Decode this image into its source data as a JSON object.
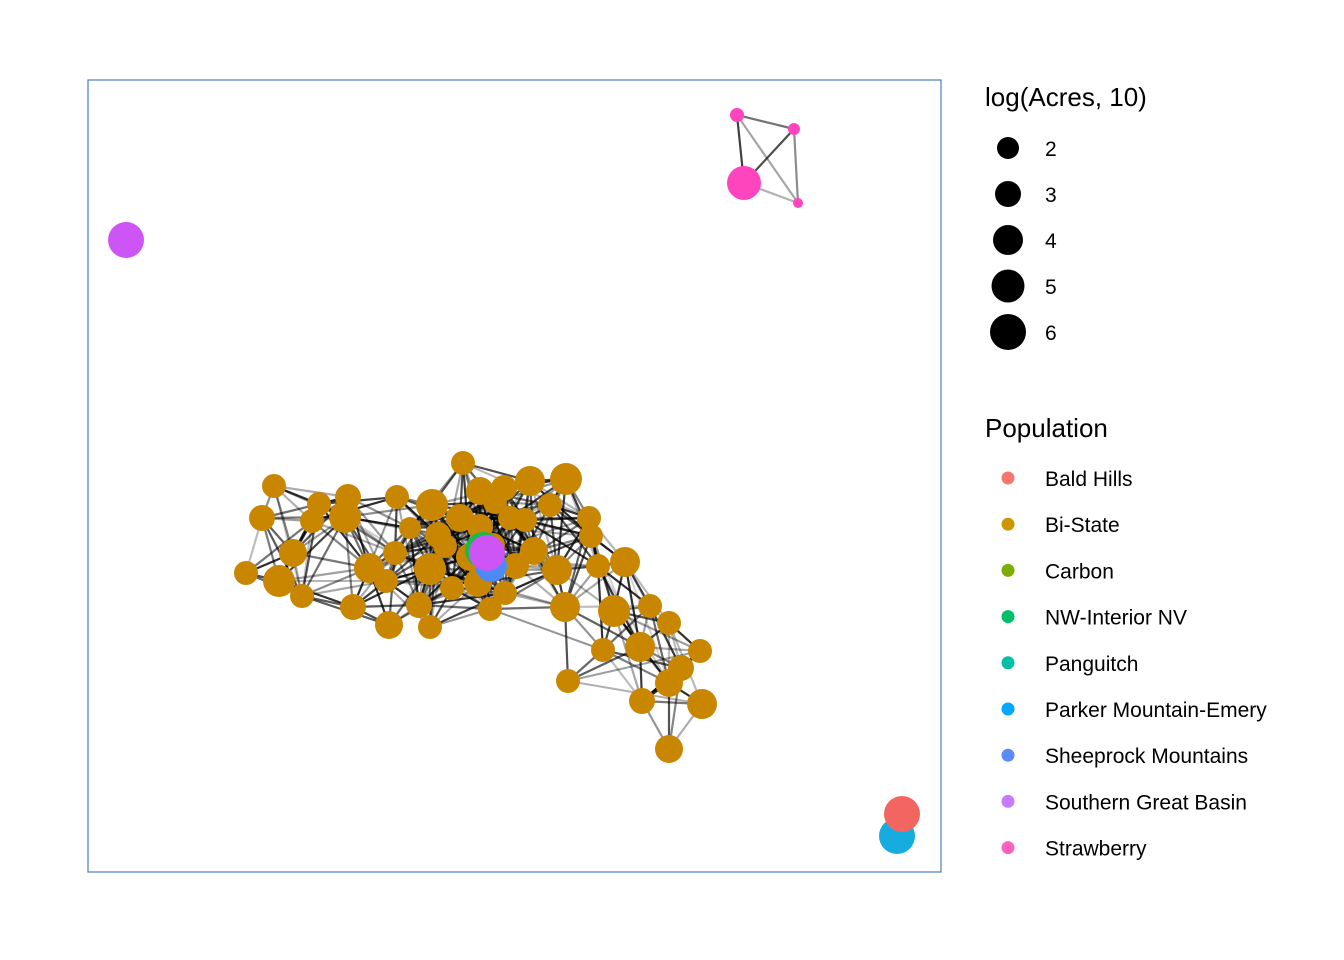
{
  "chart_data": {
    "type": "network",
    "panel_border_color": "#4a7fc1",
    "size_legend": {
      "title": "log(Acres, 10)",
      "values": [
        "2",
        "3",
        "4",
        "5",
        "6"
      ]
    },
    "color_legend": {
      "title": "Population",
      "items": [
        {
          "label": "Bald Hills",
          "color": "#F8766D"
        },
        {
          "label": "Bi-State",
          "color": "#CD9600"
        },
        {
          "label": "Carbon",
          "color": "#7CAE00"
        },
        {
          "label": "NW-Interior NV",
          "color": "#00BE67"
        },
        {
          "label": "Panguitch",
          "color": "#00BFA5"
        },
        {
          "label": "Parker Mountain-Emery",
          "color": "#00A9FF"
        },
        {
          "label": "Sheeprock Mountains",
          "color": "#5B8BF7"
        },
        {
          "label": "Southern Great Basin",
          "color": "#C77CFF"
        },
        {
          "label": "Strawberry",
          "color": "#FF61C3"
        }
      ]
    },
    "node_colors": {
      "Bi-State": "#C98600",
      "Strawberry": "#FF45BD",
      "Southern Great Basin": "#CD55F5",
      "Bald Hills": "#F26560",
      "Parker Mountain-Emery": "#16ACDF",
      "Sheeprock Mountains": "#4C8BF5",
      "NW-Interior NV": "#1CB84A"
    }
  }
}
